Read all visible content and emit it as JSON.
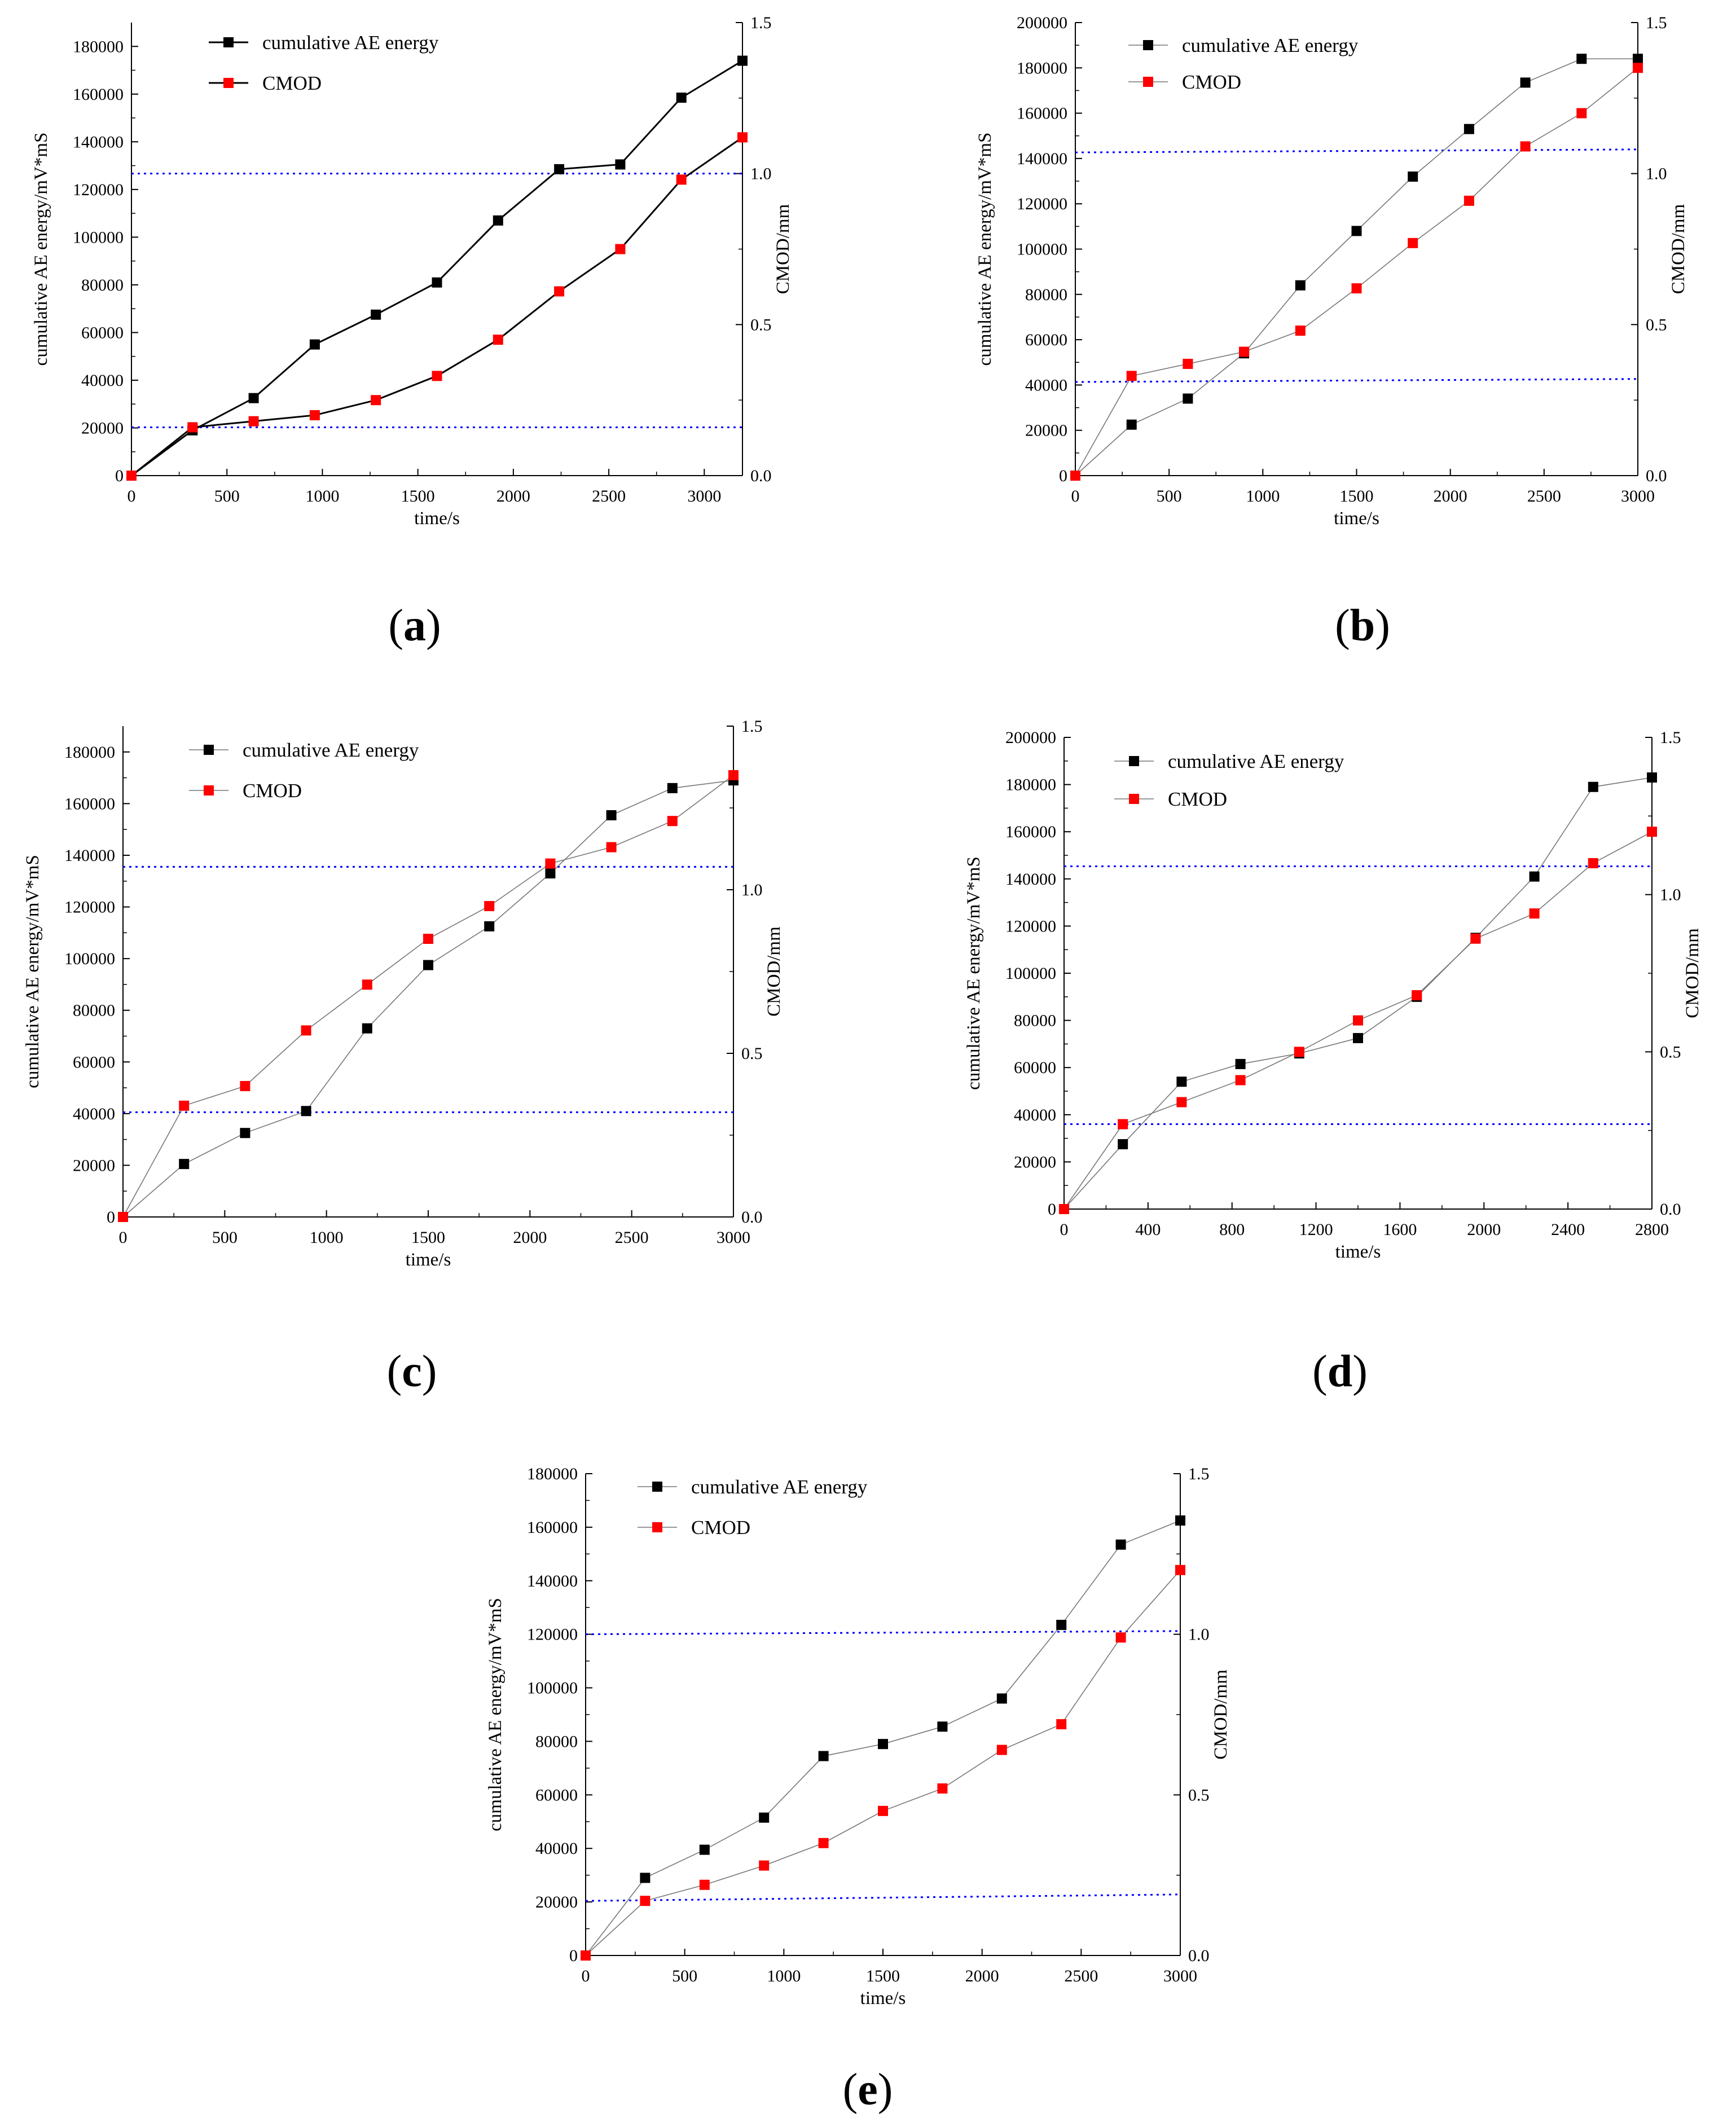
{
  "figure": {
    "label_format": [
      "(",
      ")"
    ]
  },
  "colors": {
    "energy": "#000000",
    "energy_marker": "#000000",
    "cmod": "#ff0000",
    "guide": "#0000ff",
    "axis": "#000000"
  },
  "chart_data": [
    {
      "id": "a",
      "type": "line",
      "label": "a",
      "xlabel": "time/s",
      "ylabel": "cumulative AE energy/mV*mS",
      "y2label": "CMOD/mm",
      "xlim": [
        0,
        3200
      ],
      "ylim": [
        0,
        190000
      ],
      "y2lim": [
        0,
        1.5
      ],
      "xticks": [
        0,
        500,
        1000,
        1500,
        2000,
        2500,
        3000
      ],
      "yticks": [
        0,
        20000,
        40000,
        60000,
        80000,
        100000,
        120000,
        140000,
        160000,
        180000
      ],
      "y2ticks": [
        "0.0",
        "0.5",
        "1.0",
        "1.5"
      ],
      "legend": [
        "cumulative AE energy",
        "CMOD"
      ],
      "line_weight": "bold",
      "x": [
        0,
        320,
        640,
        960,
        1280,
        1600,
        1920,
        2240,
        2560,
        2880,
        3200
      ],
      "series": [
        {
          "name": "cumulative AE energy",
          "axis": "left",
          "values": [
            0,
            19000,
            32500,
            55000,
            67500,
            81000,
            107000,
            128500,
            130500,
            158500,
            174000
          ]
        },
        {
          "name": "CMOD",
          "axis": "right",
          "values": [
            0,
            0.16,
            0.18,
            0.2,
            0.25,
            0.33,
            0.45,
            0.61,
            0.75,
            0.98,
            1.12
          ]
        }
      ],
      "guide_lines_y2": [
        [
          0.16,
          0.16
        ],
        [
          1.0,
          1.0
        ]
      ]
    },
    {
      "id": "b",
      "type": "line",
      "label": "b",
      "xlabel": "time/s",
      "ylabel": "cumulative AE energy/mV*mS",
      "y2label": "CMOD/mm",
      "xlim": [
        0,
        3000
      ],
      "ylim": [
        0,
        200000
      ],
      "y2lim": [
        0,
        1.5
      ],
      "xticks": [
        0,
        500,
        1000,
        1500,
        2000,
        2500,
        3000
      ],
      "yticks": [
        0,
        20000,
        40000,
        60000,
        80000,
        100000,
        120000,
        140000,
        160000,
        180000,
        200000
      ],
      "y2ticks": [
        "0.0",
        "0.5",
        "1.0",
        "1.5"
      ],
      "legend": [
        "cumulative AE energy",
        "CMOD"
      ],
      "line_weight": "thin",
      "x": [
        0,
        300,
        600,
        900,
        1200,
        1500,
        1800,
        2100,
        2400,
        2700,
        3000
      ],
      "series": [
        {
          "name": "cumulative AE energy",
          "axis": "left",
          "values": [
            0,
            22500,
            34000,
            54000,
            84000,
            108000,
            132000,
            153000,
            173500,
            184000,
            184000
          ]
        },
        {
          "name": "CMOD",
          "axis": "right",
          "values": [
            0,
            0.33,
            0.37,
            0.41,
            0.48,
            0.62,
            0.77,
            0.91,
            1.09,
            1.2,
            1.35
          ]
        }
      ],
      "guide_lines_y2": [
        [
          0.31,
          0.32
        ],
        [
          1.07,
          1.08
        ]
      ]
    },
    {
      "id": "c",
      "type": "line",
      "label": "c",
      "xlabel": "time/s",
      "ylabel": "cumulative AE energy/mV*mS",
      "y2label": "CMOD/mm",
      "xlim": [
        0,
        3000
      ],
      "ylim": [
        0,
        190000
      ],
      "y2lim": [
        0,
        1.5
      ],
      "xticks": [
        0,
        500,
        1000,
        1500,
        2000,
        2500,
        3000
      ],
      "yticks": [
        0,
        20000,
        40000,
        60000,
        80000,
        100000,
        120000,
        140000,
        160000,
        180000
      ],
      "y2ticks": [
        "0.0",
        "0.5",
        "1.0",
        "1.5"
      ],
      "legend": [
        "cumulative AE energy",
        "CMOD"
      ],
      "line_weight": "thin",
      "x": [
        0,
        300,
        600,
        900,
        1200,
        1500,
        1800,
        2100,
        2400,
        2700,
        3000
      ],
      "series": [
        {
          "name": "cumulative AE energy",
          "axis": "left",
          "values": [
            0,
            20500,
            32500,
            41000,
            73000,
            97500,
            112500,
            133000,
            155500,
            166000,
            169000
          ]
        },
        {
          "name": "CMOD",
          "axis": "right",
          "values": [
            0,
            0.34,
            0.4,
            0.57,
            0.71,
            0.85,
            0.95,
            1.08,
            1.13,
            1.21,
            1.35
          ]
        }
      ],
      "guide_lines_y2": [
        [
          0.32,
          0.32
        ],
        [
          1.07,
          1.07
        ]
      ]
    },
    {
      "id": "d",
      "type": "line",
      "label": "d",
      "xlabel": "time/s",
      "ylabel": "cumulative AE energy/mV*mS",
      "y2label": "CMOD/mm",
      "xlim": [
        0,
        2800
      ],
      "ylim": [
        0,
        200000
      ],
      "y2lim": [
        0,
        1.5
      ],
      "xticks": [
        0,
        400,
        800,
        1200,
        1600,
        2000,
        2400,
        2800
      ],
      "yticks": [
        0,
        20000,
        40000,
        60000,
        80000,
        100000,
        120000,
        140000,
        160000,
        180000,
        200000
      ],
      "y2ticks": [
        "0.0",
        "0.5",
        "1.0",
        "1.5"
      ],
      "legend": [
        "cumulative AE energy",
        "CMOD"
      ],
      "line_weight": "thin",
      "x": [
        0,
        280,
        560,
        840,
        1120,
        1400,
        1680,
        1960,
        2240,
        2520,
        2800
      ],
      "series": [
        {
          "name": "cumulative AE energy",
          "axis": "left",
          "values": [
            0,
            27500,
            54000,
            61500,
            66000,
            72500,
            90000,
            115000,
            141000,
            179000,
            183000
          ]
        },
        {
          "name": "CMOD",
          "axis": "right",
          "values": [
            0,
            0.27,
            0.34,
            0.41,
            0.5,
            0.6,
            0.68,
            0.86,
            0.94,
            1.1,
            1.2
          ]
        }
      ],
      "guide_lines_y2": [
        [
          0.27,
          0.27
        ],
        [
          1.09,
          1.09
        ]
      ]
    },
    {
      "id": "e",
      "type": "line",
      "label": "e",
      "xlabel": "time/s",
      "ylabel": "cumulative AE energy/mV*mS",
      "y2label": "CMOD/mm",
      "xlim": [
        0,
        3000
      ],
      "ylim": [
        0,
        180000
      ],
      "y2lim": [
        0,
        1.5
      ],
      "xticks": [
        0,
        500,
        1000,
        1500,
        2000,
        2500,
        3000
      ],
      "yticks": [
        0,
        20000,
        40000,
        60000,
        80000,
        100000,
        120000,
        140000,
        160000,
        180000
      ],
      "y2ticks": [
        "0.0",
        "0.5",
        "1.0",
        "1.5"
      ],
      "legend": [
        "cumulative AE energy",
        "CMOD"
      ],
      "line_weight": "thin",
      "x": [
        0,
        300,
        600,
        900,
        1200,
        1500,
        1800,
        2100,
        2400,
        2700,
        3000
      ],
      "series": [
        {
          "name": "cumulative AE energy",
          "axis": "left",
          "values": [
            0,
            29000,
            39500,
            51500,
            74500,
            79000,
            85500,
            96000,
            123500,
            153500,
            162500
          ]
        },
        {
          "name": "CMOD",
          "axis": "right",
          "values": [
            0,
            0.17,
            0.22,
            0.28,
            0.35,
            0.45,
            0.52,
            0.64,
            0.72,
            0.99,
            1.2
          ]
        }
      ],
      "guide_lines_y2": [
        [
          0.17,
          0.19
        ],
        [
          1.0,
          1.01
        ]
      ]
    }
  ]
}
